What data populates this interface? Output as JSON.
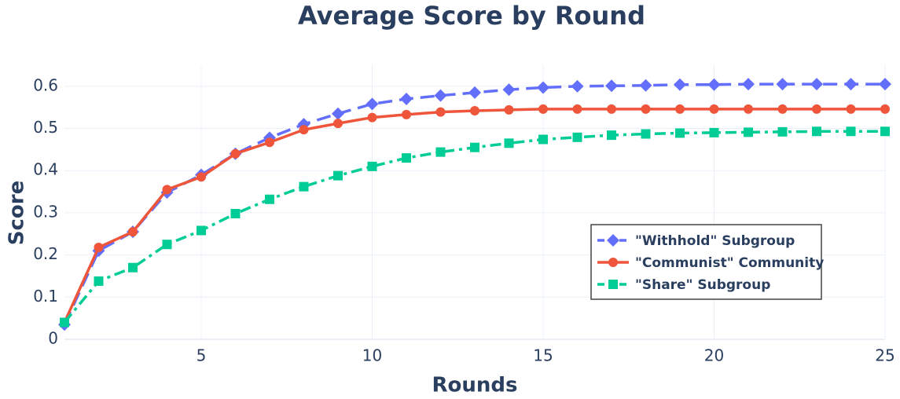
{
  "chart_data": {
    "type": "line",
    "title": "Average Score by Round",
    "x_label": "Rounds",
    "y_label": "Score",
    "x": [
      1,
      2,
      3,
      4,
      5,
      6,
      7,
      8,
      9,
      10,
      11,
      12,
      13,
      14,
      15,
      16,
      17,
      18,
      19,
      20,
      21,
      22,
      23,
      24,
      25
    ],
    "series": [
      {
        "name": "\"Withhold\" Subgroup",
        "color": "#636efa",
        "dash": "dash",
        "symbol": "diamond",
        "values": [
          0.035,
          0.21,
          0.255,
          0.348,
          0.39,
          0.44,
          0.478,
          0.51,
          0.535,
          0.558,
          0.57,
          0.578,
          0.585,
          0.592,
          0.597,
          0.6,
          0.601,
          0.602,
          0.604,
          0.604,
          0.605,
          0.605,
          0.605,
          0.605,
          0.605
        ]
      },
      {
        "name": "\"Communist\" Community",
        "color": "#ef553b",
        "dash": "solid",
        "symbol": "circle",
        "values": [
          0.04,
          0.218,
          0.255,
          0.355,
          0.385,
          0.44,
          0.467,
          0.497,
          0.512,
          0.526,
          0.533,
          0.539,
          0.542,
          0.544,
          0.546,
          0.546,
          0.546,
          0.546,
          0.546,
          0.546,
          0.546,
          0.546,
          0.546,
          0.546,
          0.546
        ]
      },
      {
        "name": "\"Share\" Subgroup",
        "color": "#00cc96",
        "dash": "dashdot",
        "symbol": "square",
        "values": [
          0.04,
          0.138,
          0.17,
          0.225,
          0.258,
          0.298,
          0.332,
          0.362,
          0.388,
          0.41,
          0.43,
          0.444,
          0.455,
          0.465,
          0.474,
          0.479,
          0.484,
          0.487,
          0.489,
          0.49,
          0.491,
          0.492,
          0.493,
          0.493,
          0.493
        ]
      }
    ],
    "xlim": [
      1,
      25
    ],
    "xticks": [
      5,
      10,
      15,
      20,
      25
    ],
    "ylim": [
      0,
      0.65
    ],
    "yticks": [
      0,
      0.1,
      0.2,
      0.3,
      0.4,
      0.5,
      0.6
    ],
    "grid": true,
    "legend_position": "lower right"
  }
}
